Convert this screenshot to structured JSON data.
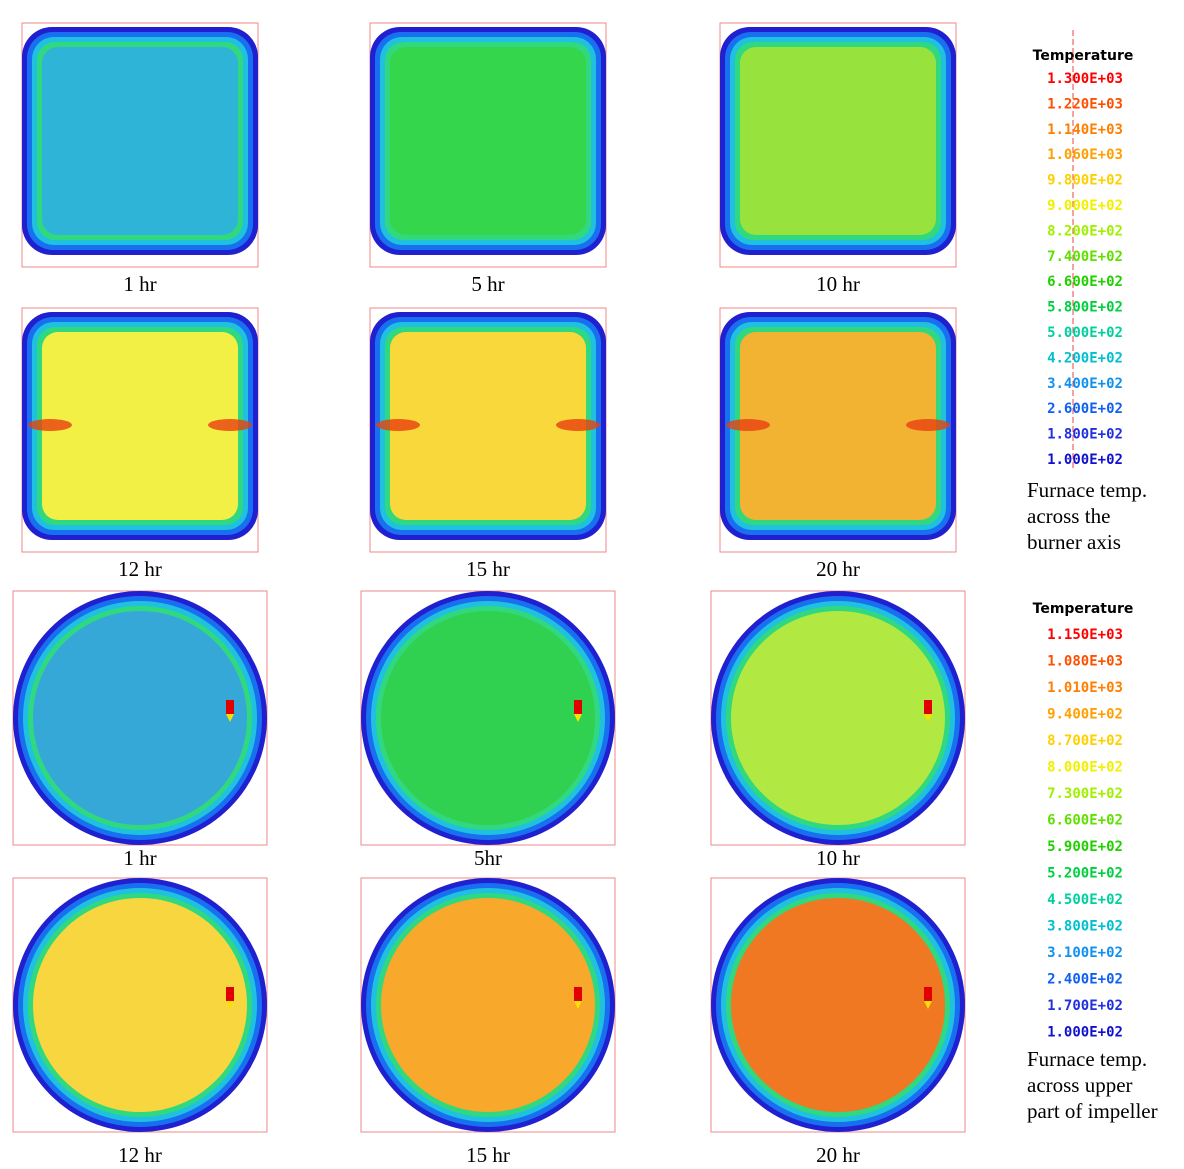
{
  "burner_panels": {
    "labels": [
      "1 hr",
      "5 hr",
      "10 hr",
      "12 hr",
      "15 hr",
      "20 hr"
    ]
  },
  "impeller_panels": {
    "labels": [
      "1 hr",
      "5hr",
      "10 hr",
      "12 hr",
      "15 hr",
      "20 hr"
    ]
  },
  "legends": [
    {
      "title": "Temperature",
      "values": [
        "1.300E+03",
        "1.220E+03",
        "1.140E+03",
        "1.060E+03",
        "9.800E+02",
        "9.000E+02",
        "8.200E+02",
        "7.400E+02",
        "6.600E+02",
        "5.800E+02",
        "5.000E+02",
        "4.200E+02",
        "3.400E+02",
        "2.600E+02",
        "1.800E+02",
        "1.000E+02"
      ],
      "caption": [
        "Furnace temp.",
        "across the",
        "burner axis"
      ]
    },
    {
      "title": "Temperature",
      "values": [
        "1.150E+03",
        "1.080E+03",
        "1.010E+03",
        "9.400E+02",
        "8.700E+02",
        "8.000E+02",
        "7.300E+02",
        "6.600E+02",
        "5.900E+02",
        "5.200E+02",
        "4.500E+02",
        "3.800E+02",
        "3.100E+02",
        "2.400E+02",
        "1.700E+02",
        "1.000E+02"
      ],
      "caption": [
        "Furnace temp.",
        "across upper",
        "part of impeller"
      ]
    }
  ]
}
